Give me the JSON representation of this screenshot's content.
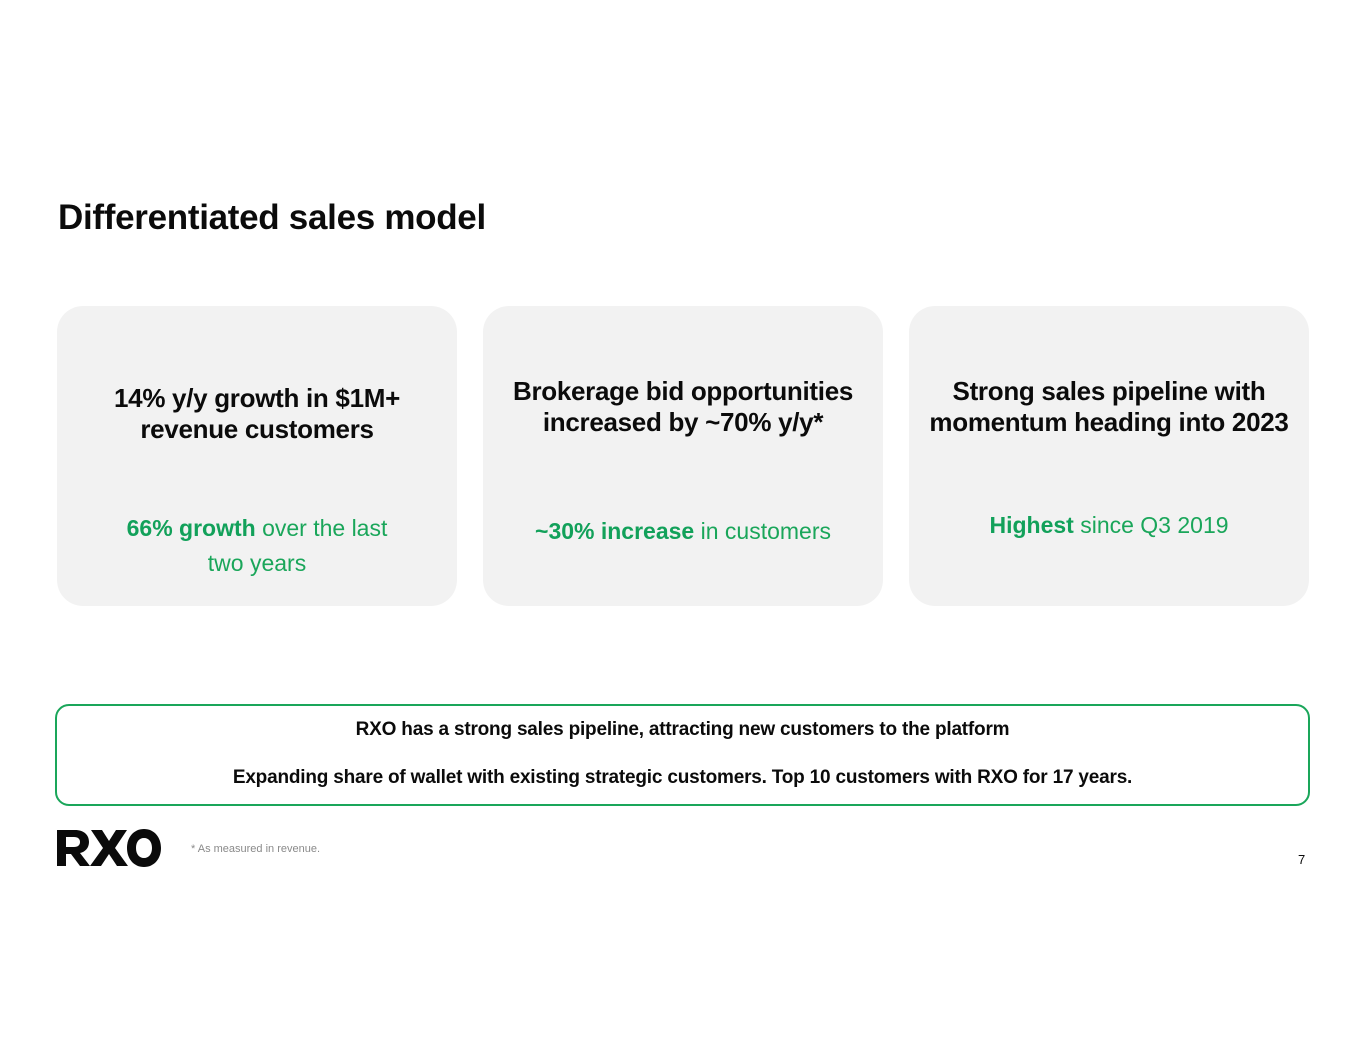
{
  "slide": {
    "title": "Differentiated sales model"
  },
  "cards": [
    {
      "headline": "14% y/y growth in $1M+ revenue customers",
      "highlight": "66% growth",
      "detail": " over the last two years"
    },
    {
      "headline": "Brokerage bid opportunities increased by ~70% y/y*",
      "highlight": "~30% increase",
      "detail": " in customers"
    },
    {
      "headline": "Strong sales pipeline with momentum heading into 2023",
      "highlight": "Highest",
      "detail": " since Q3 2019"
    }
  ],
  "callout": {
    "line1": "RXO has a strong sales pipeline, attracting new customers to the platform",
    "line2": "Expanding share of wallet with existing strategic customers. Top 10 customers with RXO for 17 years."
  },
  "footer": {
    "logo_text": "RXO",
    "footnote": "* As measured in revenue.",
    "page_number": "7"
  },
  "colors": {
    "accent_green": "#1aa65a",
    "card_background": "#f2f2f2",
    "text": "#0b0b0b"
  }
}
